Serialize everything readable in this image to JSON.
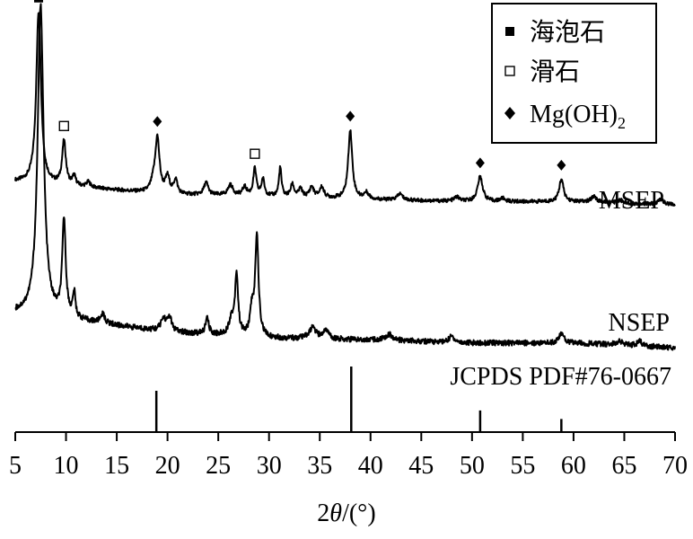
{
  "chart_data": {
    "type": "line",
    "title": "",
    "xlabel": "2θ/(°)",
    "xlabel_parts": {
      "var": "2",
      "theta": "θ",
      "unit": "/(°)"
    },
    "ylabel": "",
    "xlim": [
      5,
      70
    ],
    "x_ticks": [
      5,
      10,
      15,
      20,
      25,
      30,
      35,
      40,
      45,
      50,
      55,
      60,
      65,
      70
    ],
    "y_axis_visible": false,
    "grid": false,
    "legend": {
      "placement": "top-right",
      "entries": [
        {
          "label": "海泡石",
          "marker": "filled-square"
        },
        {
          "label": "滑石",
          "marker": "open-square"
        },
        {
          "label": "Mg(OH)2",
          "label_base": "Mg(OH)",
          "label_sub": "2",
          "marker": "diamond"
        }
      ]
    },
    "series": [
      {
        "name": "MSEP",
        "baseline": [
          [
            5,
            2.2
          ],
          [
            10,
            1.8
          ],
          [
            20,
            1.0
          ],
          [
            30,
            0.8
          ],
          [
            40,
            0.5
          ],
          [
            50,
            0.3
          ],
          [
            60,
            0.3
          ],
          [
            70,
            0.0
          ]
        ],
        "peaks": [
          {
            "x": 7.3,
            "h": 16.5,
            "w": 0.28
          },
          {
            "x": 9.8,
            "h": 4.2,
            "w": 0.22
          },
          {
            "x": 10.8,
            "h": 0.9,
            "w": 0.2
          },
          {
            "x": 12.2,
            "h": 0.5,
            "w": 0.25
          },
          {
            "x": 18.6,
            "h": 0.8,
            "w": 0.3
          },
          {
            "x": 19.0,
            "h": 5.2,
            "w": 0.25
          },
          {
            "x": 20.0,
            "h": 1.6,
            "w": 0.25
          },
          {
            "x": 20.8,
            "h": 1.4,
            "w": 0.2
          },
          {
            "x": 23.8,
            "h": 1.2,
            "w": 0.25
          },
          {
            "x": 26.2,
            "h": 1.0,
            "w": 0.3
          },
          {
            "x": 27.6,
            "h": 0.8,
            "w": 0.25
          },
          {
            "x": 28.6,
            "h": 2.6,
            "w": 0.18
          },
          {
            "x": 29.4,
            "h": 1.6,
            "w": 0.18
          },
          {
            "x": 31.1,
            "h": 2.8,
            "w": 0.15
          },
          {
            "x": 32.3,
            "h": 1.2,
            "w": 0.2
          },
          {
            "x": 33.1,
            "h": 0.8,
            "w": 0.2
          },
          {
            "x": 34.2,
            "h": 1.0,
            "w": 0.25
          },
          {
            "x": 35.2,
            "h": 1.0,
            "w": 0.25
          },
          {
            "x": 38.0,
            "h": 6.6,
            "w": 0.24
          },
          {
            "x": 39.6,
            "h": 0.6,
            "w": 0.3
          },
          {
            "x": 42.9,
            "h": 0.6,
            "w": 0.3
          },
          {
            "x": 48.5,
            "h": 0.4,
            "w": 0.3
          },
          {
            "x": 50.8,
            "h": 2.4,
            "w": 0.3
          },
          {
            "x": 53.0,
            "h": 0.3,
            "w": 0.3
          },
          {
            "x": 58.8,
            "h": 2.2,
            "w": 0.25
          },
          {
            "x": 62.0,
            "h": 0.6,
            "w": 0.3
          },
          {
            "x": 64.6,
            "h": 0.3,
            "w": 0.3
          },
          {
            "x": 68.6,
            "h": 0.5,
            "w": 0.3
          }
        ]
      },
      {
        "name": "NSEP",
        "baseline": [
          [
            5,
            2.2
          ],
          [
            10,
            1.8
          ],
          [
            20,
            1.0
          ],
          [
            30,
            0.6
          ],
          [
            40,
            0.5
          ],
          [
            50,
            0.3
          ],
          [
            60,
            0.3
          ],
          [
            70,
            0.0
          ]
        ],
        "peaks": [
          {
            "x": 7.5,
            "h": 20.0,
            "w": 0.35
          },
          {
            "x": 9.8,
            "h": 6.2,
            "w": 0.2
          },
          {
            "x": 10.8,
            "h": 1.6,
            "w": 0.15
          },
          {
            "x": 13.6,
            "h": 0.6,
            "w": 0.25
          },
          {
            "x": 19.6,
            "h": 0.8,
            "w": 0.3
          },
          {
            "x": 20.2,
            "h": 0.9,
            "w": 0.25
          },
          {
            "x": 23.9,
            "h": 1.0,
            "w": 0.2
          },
          {
            "x": 26.3,
            "h": 1.0,
            "w": 0.3
          },
          {
            "x": 26.8,
            "h": 3.9,
            "w": 0.18
          },
          {
            "x": 28.3,
            "h": 1.6,
            "w": 0.2
          },
          {
            "x": 28.8,
            "h": 6.5,
            "w": 0.2
          },
          {
            "x": 34.3,
            "h": 0.7,
            "w": 0.4
          },
          {
            "x": 35.6,
            "h": 0.6,
            "w": 0.3
          },
          {
            "x": 41.8,
            "h": 0.4,
            "w": 0.4
          },
          {
            "x": 48.0,
            "h": 0.4,
            "w": 0.3
          },
          {
            "x": 58.8,
            "h": 0.6,
            "w": 0.3
          },
          {
            "x": 64.5,
            "h": 0.3,
            "w": 0.3
          },
          {
            "x": 66.5,
            "h": 0.3,
            "w": 0.3
          }
        ]
      },
      {
        "name": "JCPDS PDF#76-0667",
        "type": "stick",
        "sticks": [
          {
            "x": 18.9,
            "h": 0.63
          },
          {
            "x": 38.1,
            "h": 1.0
          },
          {
            "x": 50.8,
            "h": 0.33
          },
          {
            "x": 58.8,
            "h": 0.2
          }
        ]
      }
    ],
    "annotations": [
      {
        "marker": "filled-square",
        "x": 7.3,
        "series": "MSEP"
      },
      {
        "marker": "open-square",
        "x": 9.8,
        "series": "MSEP"
      },
      {
        "marker": "diamond",
        "x": 19.0,
        "series": "MSEP"
      },
      {
        "marker": "open-square",
        "x": 28.6,
        "series": "MSEP"
      },
      {
        "marker": "diamond",
        "x": 38.0,
        "series": "MSEP"
      },
      {
        "marker": "diamond",
        "x": 50.8,
        "series": "MSEP"
      },
      {
        "marker": "diamond",
        "x": 58.8,
        "series": "MSEP"
      }
    ]
  }
}
